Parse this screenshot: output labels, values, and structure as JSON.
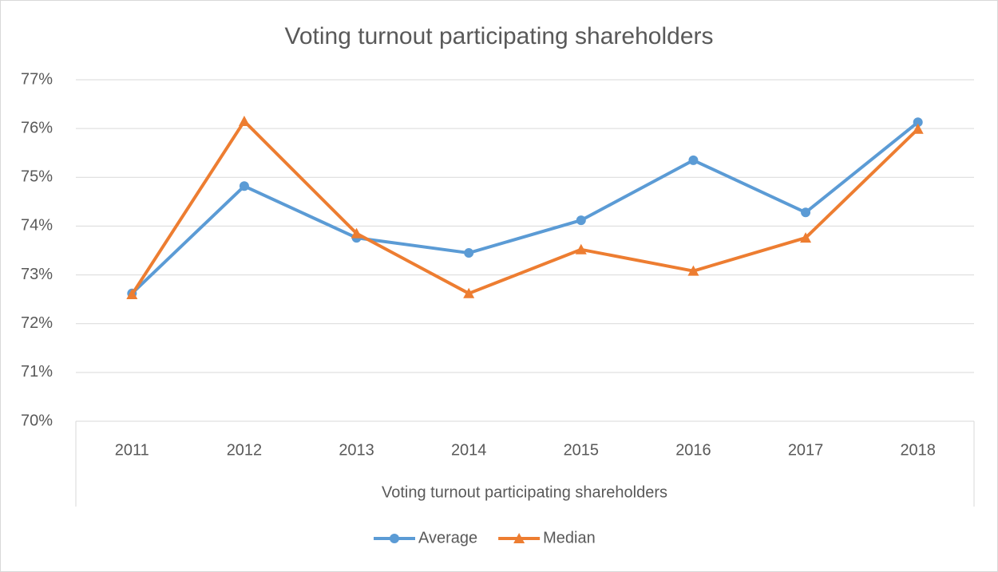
{
  "chart_data": {
    "type": "line",
    "title": "Voting turnout participating shareholders",
    "x_label": "Voting turnout participating shareholders",
    "categories": [
      "2011",
      "2012",
      "2013",
      "2014",
      "2015",
      "2016",
      "2017",
      "2018"
    ],
    "series": [
      {
        "name": "Average",
        "color": "#5b9bd5",
        "marker": "circle",
        "values": [
          72.62,
          74.82,
          73.76,
          73.45,
          74.12,
          75.35,
          74.28,
          76.13
        ]
      },
      {
        "name": "Median",
        "color": "#ed7d31",
        "marker": "triangle",
        "values": [
          72.6,
          76.15,
          73.85,
          72.62,
          73.52,
          73.08,
          73.76,
          75.99
        ]
      }
    ],
    "ylim": [
      70,
      77
    ],
    "yticks": [
      {
        "value": 70,
        "label": "70%"
      },
      {
        "value": 71,
        "label": "71%"
      },
      {
        "value": 72,
        "label": "72%"
      },
      {
        "value": 73,
        "label": "73%"
      },
      {
        "value": 74,
        "label": "74%"
      },
      {
        "value": 75,
        "label": "75%"
      },
      {
        "value": 76,
        "label": "76%"
      },
      {
        "value": 77,
        "label": "77%"
      }
    ],
    "grid": true,
    "legend": "bottom"
  }
}
